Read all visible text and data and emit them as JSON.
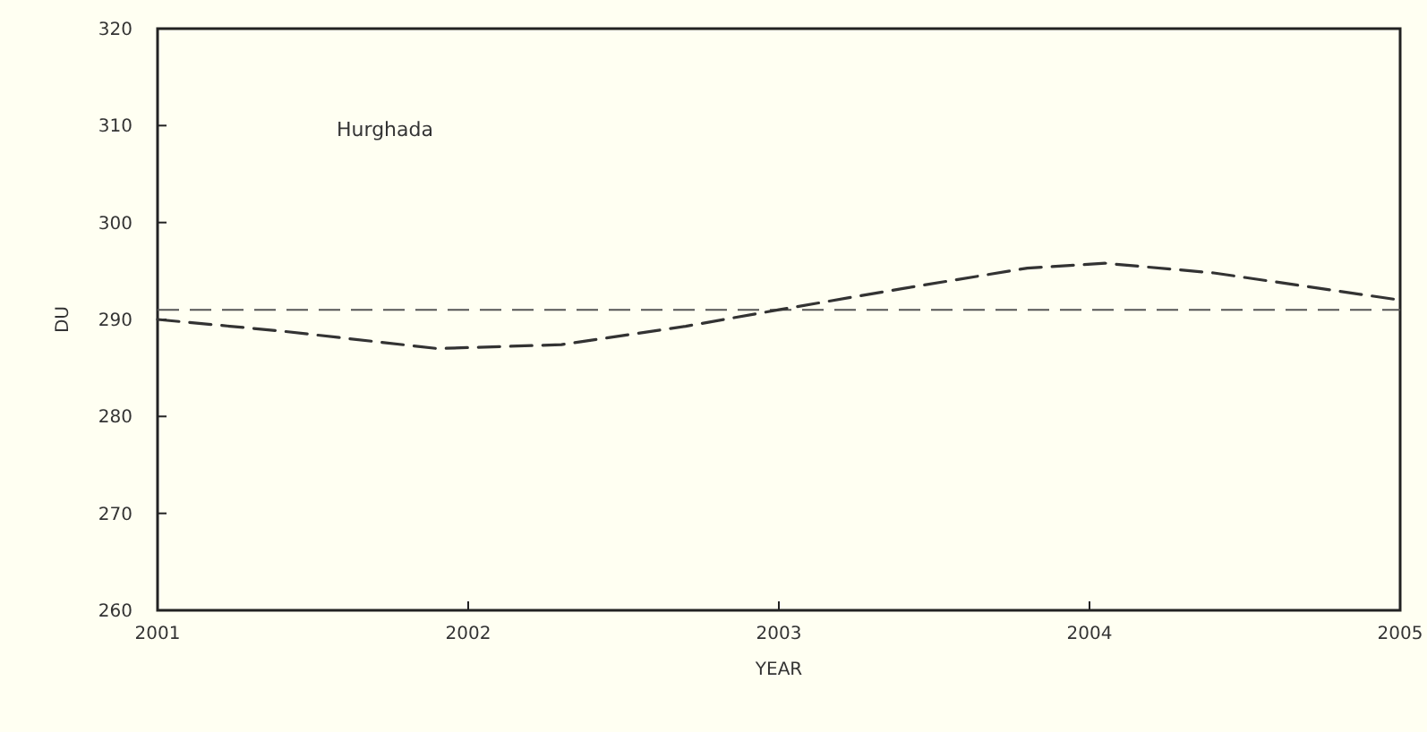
{
  "chart_data": {
    "type": "line",
    "xlabel": "YEAR",
    "ylabel": "DU",
    "annotations": [
      "Hurghada"
    ],
    "x": [
      2001,
      2001.4,
      2001.9,
      2002.3,
      2002.7,
      2003,
      2003.4,
      2003.8,
      2004.05,
      2004.4,
      2005
    ],
    "series": [
      {
        "color": "#333333",
        "values": [
          290,
          288.8,
          287,
          287.4,
          289.3,
          291,
          293.2,
          295.3,
          295.8,
          294.8,
          292
        ]
      }
    ],
    "xlim": [
      2001,
      2005
    ],
    "xticks": [
      2001,
      2002,
      2003,
      2004,
      2005
    ],
    "ylim": [
      260,
      320
    ],
    "yticks": [
      260,
      270,
      280,
      290,
      300,
      310,
      320
    ],
    "ref_lines": [
      {
        "axis": "y",
        "value": 291,
        "color": "#555555",
        "line_style": "dashed"
      }
    ],
    "line_style": "dashed",
    "marker": "none"
  }
}
